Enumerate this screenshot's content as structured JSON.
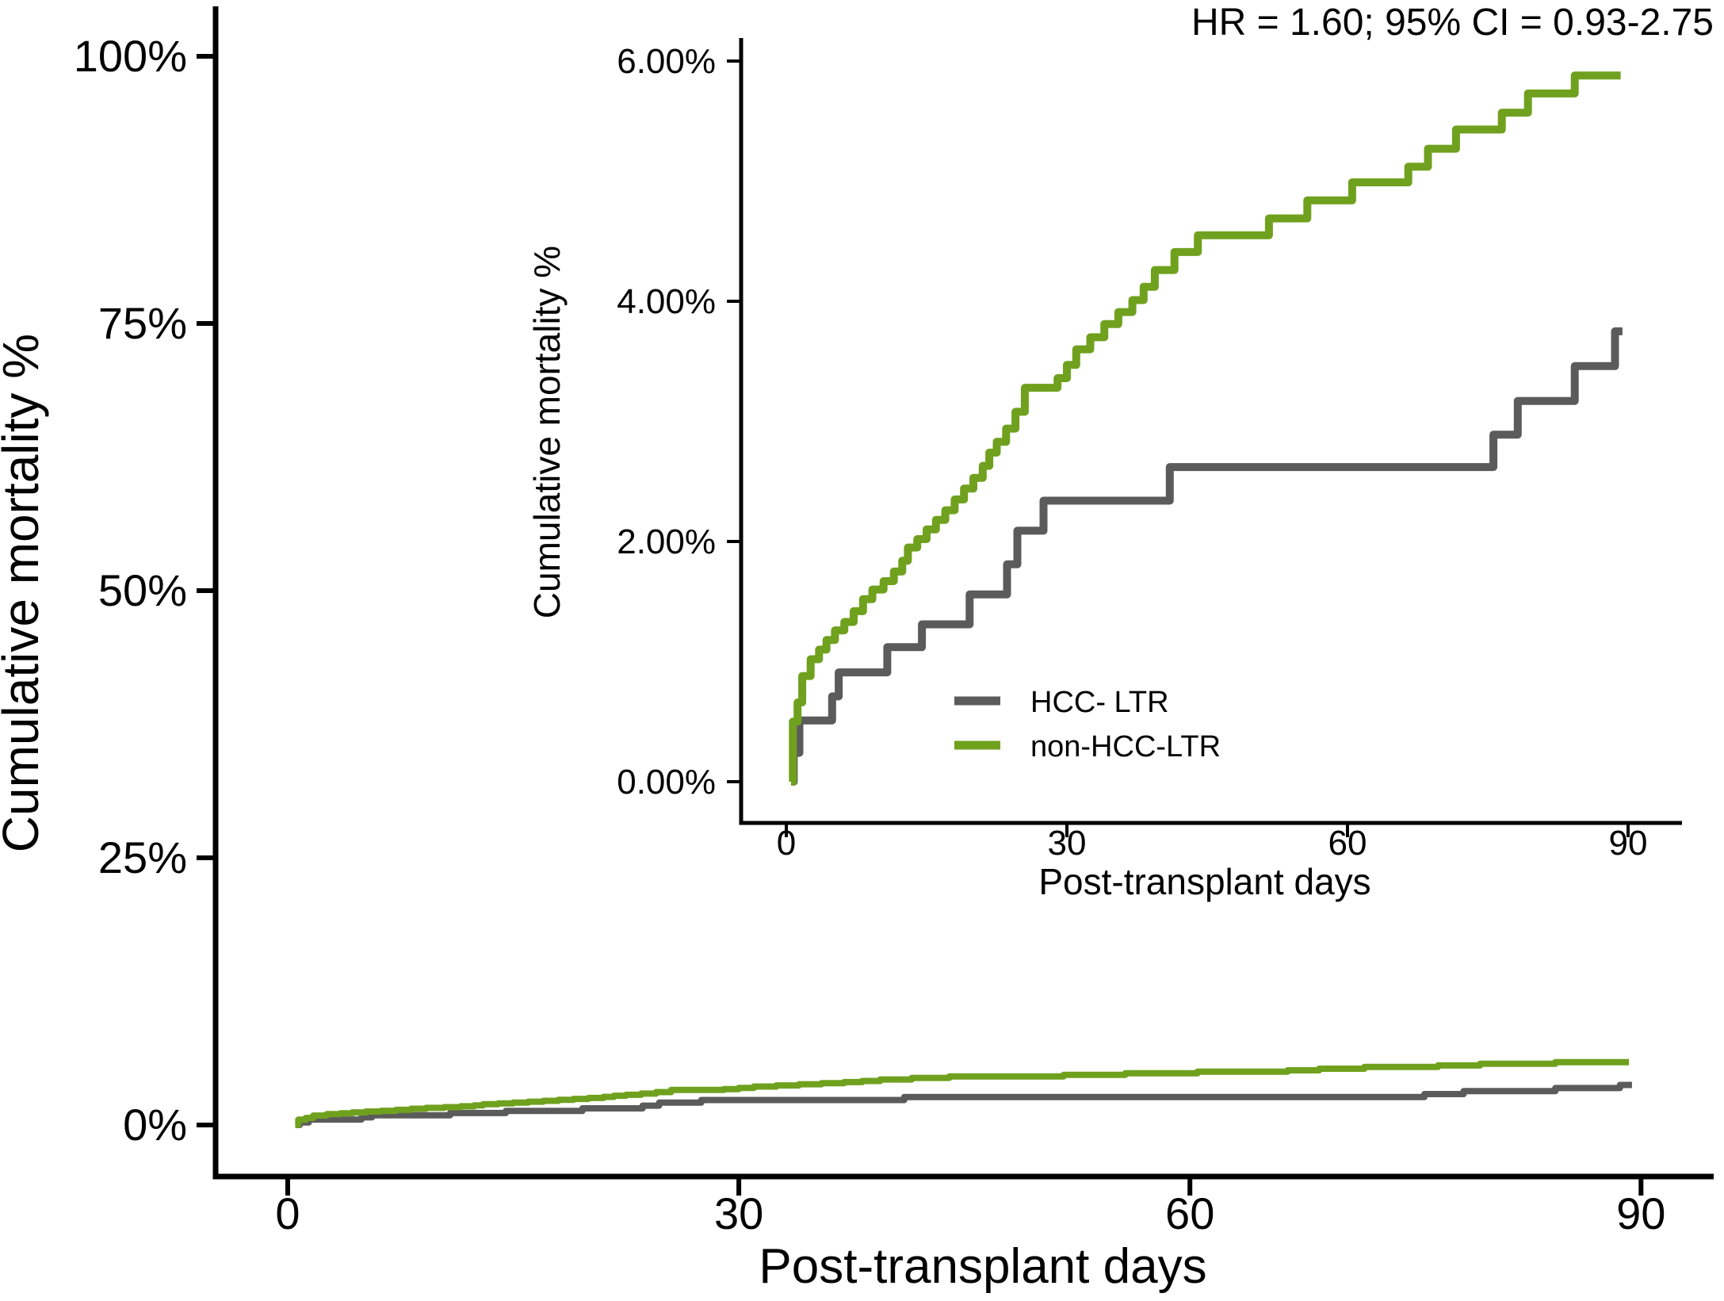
{
  "annotation": "HR = 1.60; 95% CI = 0.93-2.75",
  "colors": {
    "hcc": "#5b5b5b",
    "non_hcc": "#6fa11e",
    "axis": "#000000",
    "background": "#ffffff"
  },
  "legend": {
    "items": [
      {
        "label": "HCC- LTR",
        "series": "hcc"
      },
      {
        "label": "non-HCC-LTR",
        "series": "non_hcc"
      }
    ]
  },
  "main_chart": {
    "xlabel": "Post-transplant days",
    "ylabel": "Cumulative mortality %",
    "xticks": [
      {
        "value": 0,
        "label": "0"
      },
      {
        "value": 30,
        "label": "30"
      },
      {
        "value": 60,
        "label": "60"
      },
      {
        "value": 90,
        "label": "90"
      }
    ],
    "yticks": [
      {
        "value": 0,
        "label": "0%"
      },
      {
        "value": 25,
        "label": "25%"
      },
      {
        "value": 50,
        "label": "50%"
      },
      {
        "value": 75,
        "label": "75%"
      },
      {
        "value": 100,
        "label": "100%"
      }
    ]
  },
  "inset_chart": {
    "xlabel": "Post-transplant days",
    "ylabel": "Cumulative mortality %",
    "xticks": [
      {
        "value": 0,
        "label": "0"
      },
      {
        "value": 30,
        "label": "30"
      },
      {
        "value": 60,
        "label": "60"
      },
      {
        "value": 90,
        "label": "90"
      }
    ],
    "yticks": [
      {
        "value": 0,
        "label": "0.00%"
      },
      {
        "value": 2,
        "label": "2.00%"
      },
      {
        "value": 4,
        "label": "4.00%"
      },
      {
        "value": 6,
        "label": "6.00%"
      }
    ]
  },
  "chart_data": {
    "type": "line",
    "step": true,
    "title": "",
    "xlabel": "Post-transplant days",
    "ylabel": "Cumulative mortality %",
    "x_unit": "days",
    "y_unit": "percent",
    "main_xlim": [
      0,
      90
    ],
    "main_ylim": [
      0,
      100
    ],
    "inset_xlim": [
      0,
      90
    ],
    "inset_ylim": [
      0,
      6
    ],
    "grid": false,
    "legend_position": "inset-lower-right",
    "series": [
      {
        "name": "HCC- LTR",
        "color_key": "hcc",
        "points": [
          [
            0.7,
            0
          ],
          [
            0.8,
            0.24
          ],
          [
            1.4,
            0.51
          ],
          [
            4.9,
            0.71
          ],
          [
            5.6,
            0.91
          ],
          [
            10.8,
            1.12
          ],
          [
            14.5,
            1.31
          ],
          [
            19.6,
            1.56
          ],
          [
            23.6,
            1.81
          ],
          [
            24.7,
            2.09
          ],
          [
            27.5,
            2.34
          ],
          [
            41,
            2.62
          ],
          [
            75.6,
            2.89
          ],
          [
            78.2,
            3.17
          ],
          [
            84.3,
            3.46
          ],
          [
            88.6,
            3.75
          ],
          [
            89.4,
            3.75
          ]
        ]
      },
      {
        "name": "non-HCC-LTR",
        "color_key": "non_hcc",
        "points": [
          [
            0.5,
            0
          ],
          [
            0.7,
            0.5
          ],
          [
            1.2,
            0.66
          ],
          [
            1.7,
            0.88
          ],
          [
            2.6,
            1.02
          ],
          [
            3.5,
            1.1
          ],
          [
            4.3,
            1.18
          ],
          [
            5.2,
            1.26
          ],
          [
            6.2,
            1.33
          ],
          [
            7.2,
            1.42
          ],
          [
            8.2,
            1.52
          ],
          [
            9.2,
            1.6
          ],
          [
            10.4,
            1.67
          ],
          [
            11.5,
            1.75
          ],
          [
            12.4,
            1.84
          ],
          [
            13,
            1.95
          ],
          [
            14,
            2.02
          ],
          [
            15,
            2.1
          ],
          [
            16,
            2.18
          ],
          [
            17,
            2.26
          ],
          [
            18,
            2.35
          ],
          [
            19,
            2.44
          ],
          [
            20,
            2.53
          ],
          [
            21,
            2.63
          ],
          [
            21.7,
            2.74
          ],
          [
            22.5,
            2.83
          ],
          [
            23.5,
            2.94
          ],
          [
            24.5,
            3.08
          ],
          [
            25.5,
            3.28
          ],
          [
            29,
            3.36
          ],
          [
            30,
            3.47
          ],
          [
            31,
            3.6
          ],
          [
            32.5,
            3.7
          ],
          [
            34,
            3.81
          ],
          [
            35.5,
            3.91
          ],
          [
            37,
            4.01
          ],
          [
            38.2,
            4.12
          ],
          [
            39.4,
            4.26
          ],
          [
            41.5,
            4.41
          ],
          [
            44,
            4.55
          ],
          [
            51.6,
            4.69
          ],
          [
            55.7,
            4.84
          ],
          [
            60.5,
            4.99
          ],
          [
            66.5,
            5.12
          ],
          [
            68.6,
            5.27
          ],
          [
            71.6,
            5.43
          ],
          [
            76.5,
            5.57
          ],
          [
            79.3,
            5.73
          ],
          [
            84.3,
            5.88
          ],
          [
            89.2,
            5.88
          ]
        ]
      }
    ]
  }
}
